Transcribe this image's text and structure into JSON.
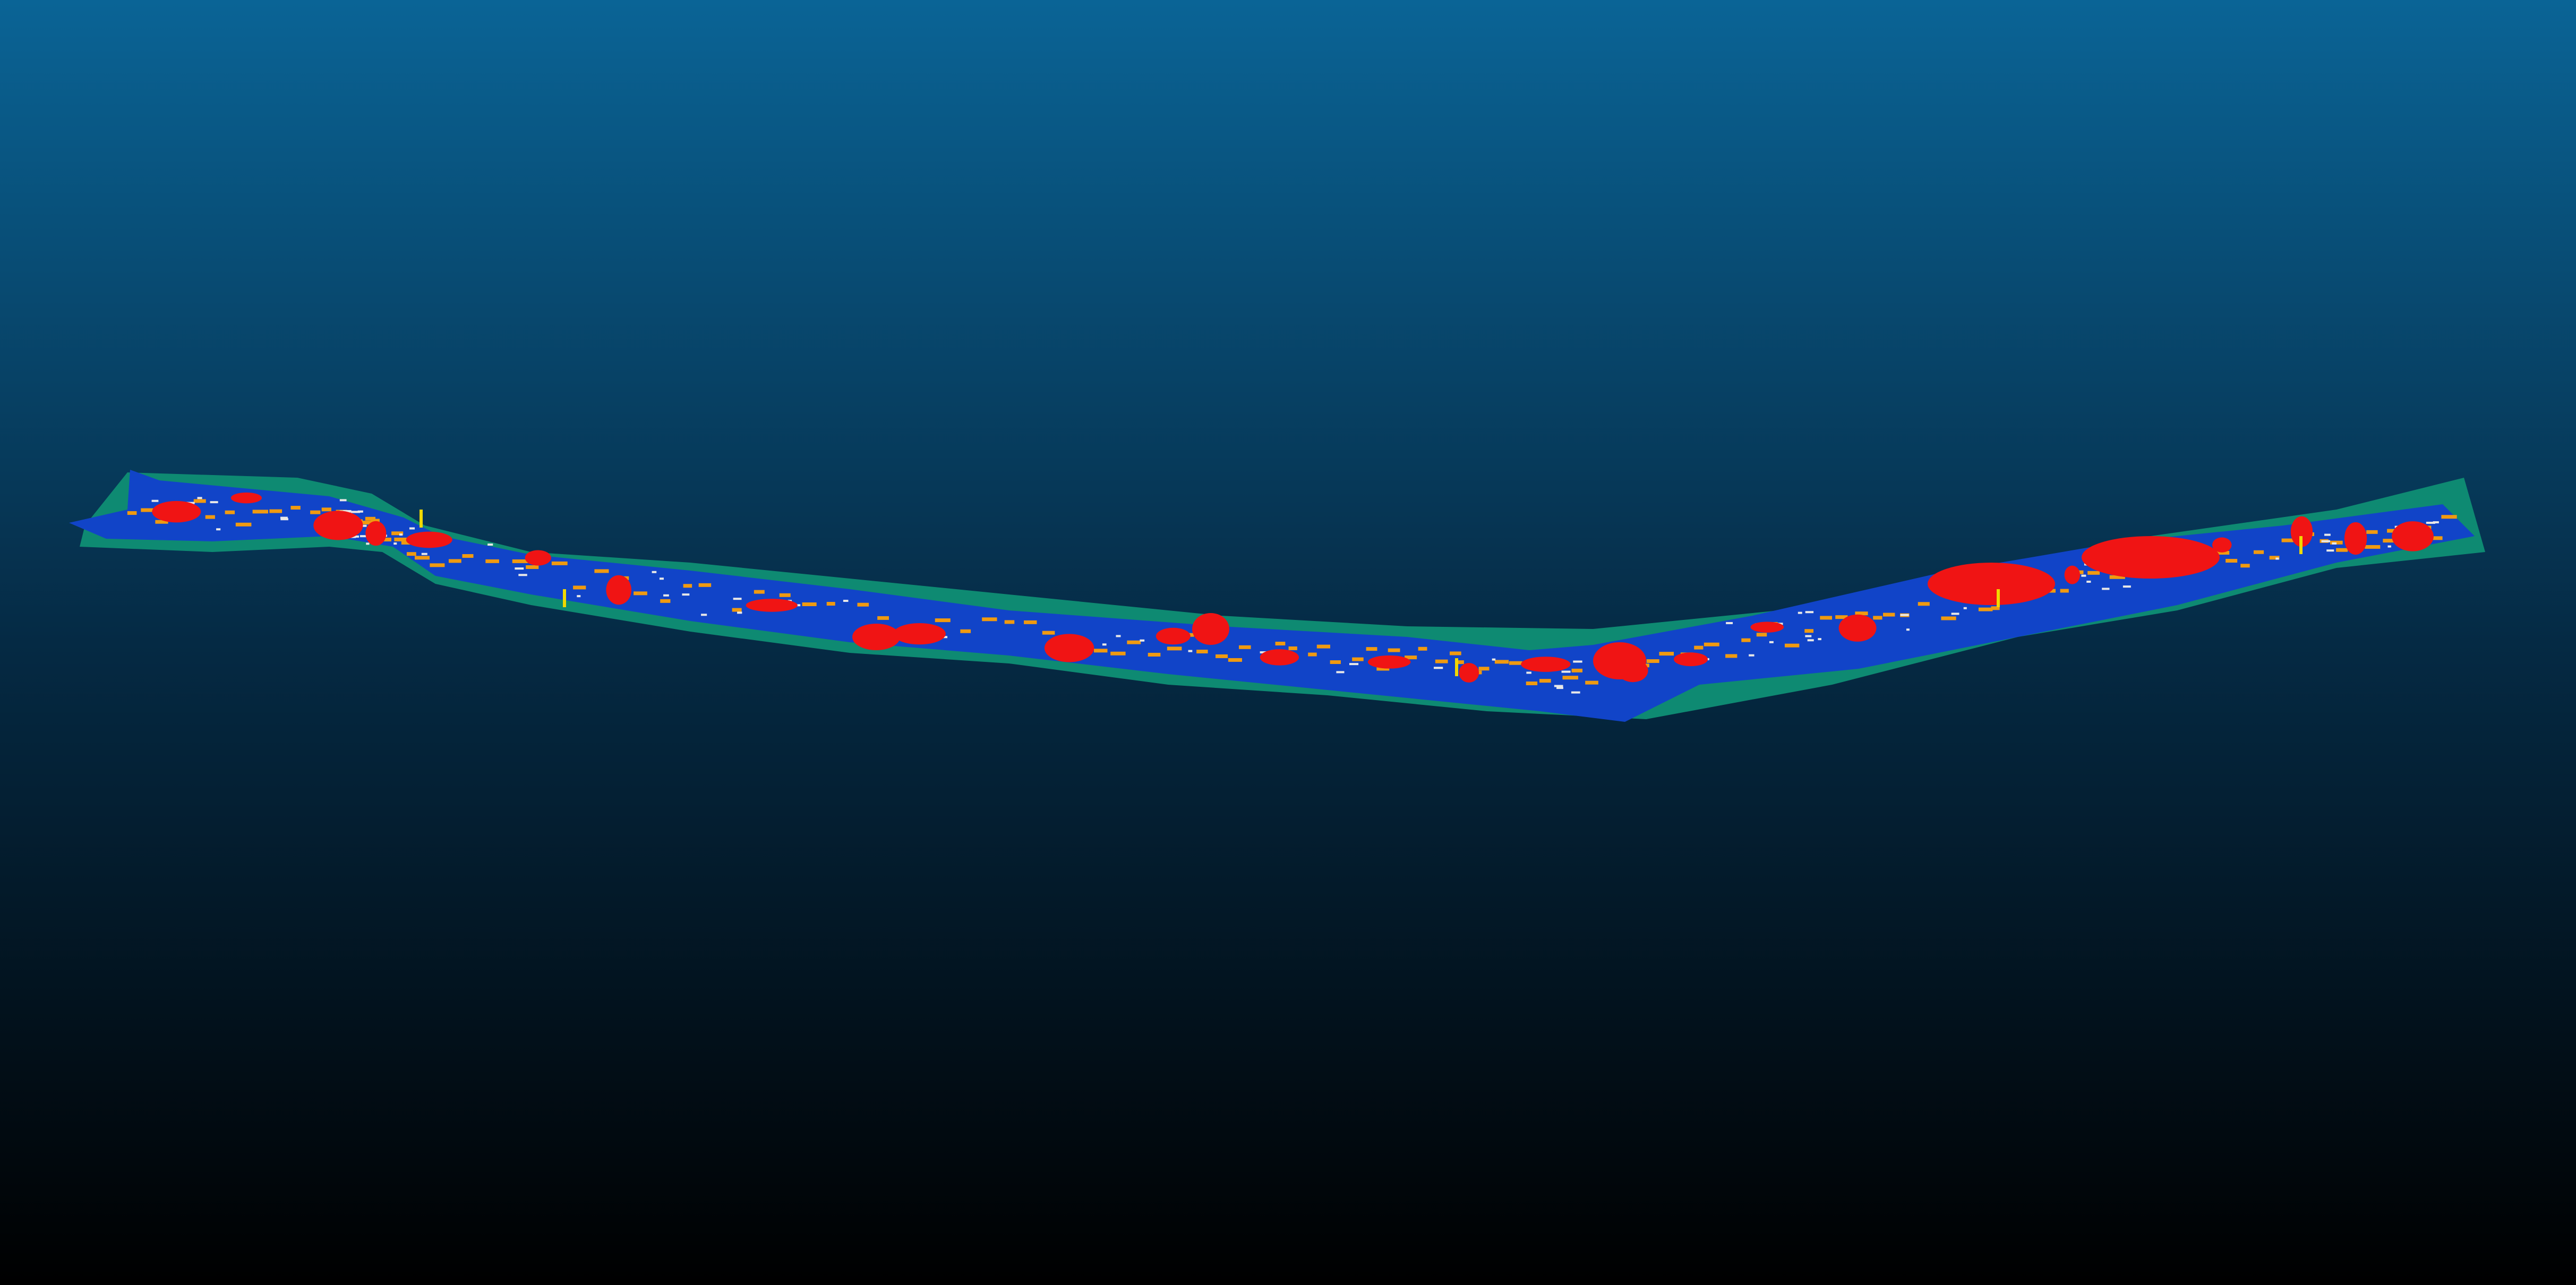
{
  "viewer": {
    "background": {
      "top_color": "#0a6496",
      "mid_color": "#052a44",
      "bottom_color": "#000000"
    }
  },
  "classes": [
    {
      "name": "road",
      "color": "#1144c8"
    },
    {
      "name": "vegetation",
      "color": "#0e8a72"
    },
    {
      "name": "vehicle",
      "color": "#f01414"
    },
    {
      "name": "lane-marking",
      "color": "#f09a10"
    },
    {
      "name": "sidewalk-edge",
      "color": "#e8e8e8"
    },
    {
      "name": "pole",
      "color": "#f0d800"
    }
  ]
}
